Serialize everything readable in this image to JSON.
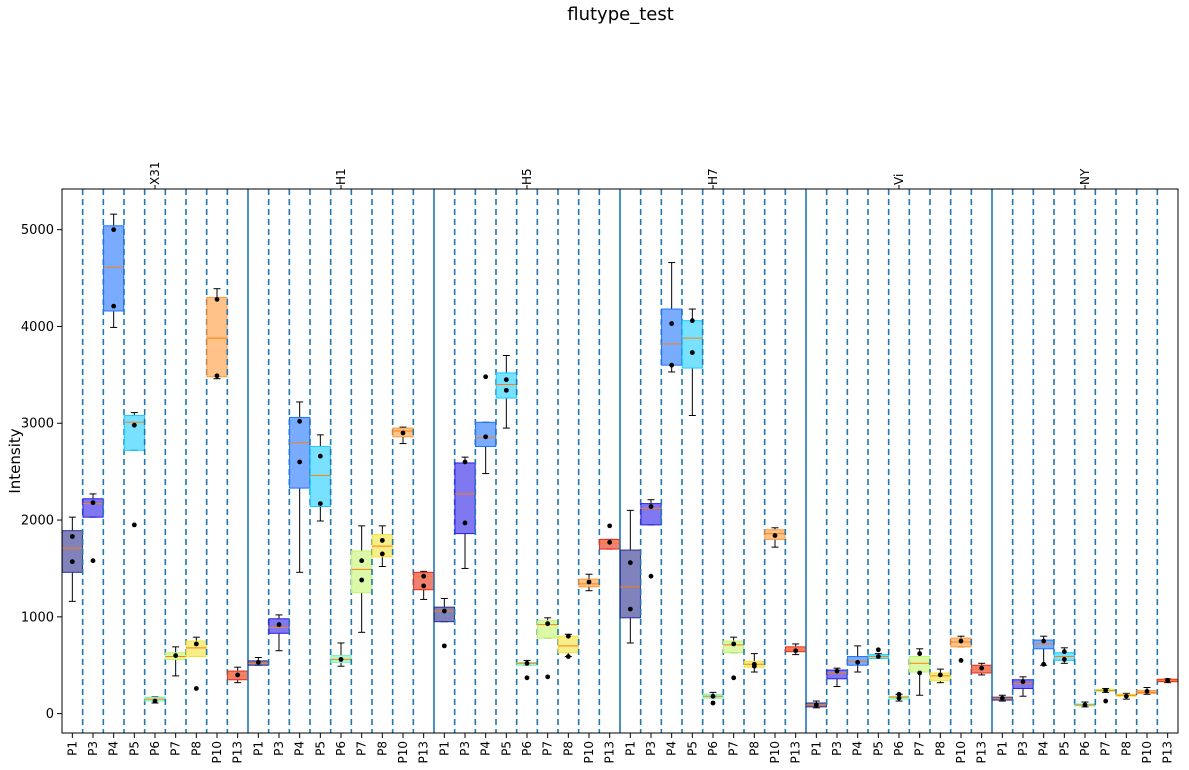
{
  "chart_data": {
    "type": "box",
    "title": "flutype_test",
    "xlabel": "",
    "ylabel": "Intensity",
    "ylim": [
      -200,
      5420
    ],
    "yticks": [
      0,
      1000,
      2000,
      3000,
      4000,
      5000
    ],
    "categories": [
      "P1",
      "P3",
      "P4",
      "P5",
      "P6",
      "P7",
      "P8",
      "P10",
      "P13"
    ],
    "colors": [
      "#2b2f8f",
      "#2a1ee6",
      "#1f73ff",
      "#1ccdff",
      "#7ef2b5",
      "#c3f56c",
      "#f2e33a",
      "#ff9a3a",
      "#ea2b14"
    ],
    "groups": [
      {
        "name": "X31",
        "boxes": [
          {
            "q1": 1460,
            "median": 1710,
            "q3": 1890,
            "lo": 1160,
            "hi": 2030,
            "pts": [
              1830,
              1570
            ]
          },
          {
            "q1": 2030,
            "median": 2170,
            "q3": 2220,
            "lo": 2030,
            "hi": 2270,
            "pts": [
              2180,
              1580
            ]
          },
          {
            "q1": 4160,
            "median": 4610,
            "q3": 5040,
            "lo": 3990,
            "hi": 5160,
            "pts": [
              5000,
              4210
            ]
          },
          {
            "q1": 2720,
            "median": 3010,
            "q3": 3080,
            "lo": 2720,
            "hi": 3110,
            "pts": [
              2980,
              1950
            ]
          },
          {
            "q1": 130,
            "median": 150,
            "q3": 170,
            "lo": 110,
            "hi": 175,
            "pts": [
              130
            ]
          },
          {
            "q1": 560,
            "median": 590,
            "q3": 630,
            "lo": 390,
            "hi": 690,
            "pts": [
              600
            ]
          },
          {
            "q1": 590,
            "median": 680,
            "q3": 750,
            "lo": 590,
            "hi": 790,
            "pts": [
              720,
              260
            ]
          },
          {
            "q1": 3480,
            "median": 3880,
            "q3": 4300,
            "lo": 3460,
            "hi": 4390,
            "pts": [
              4280,
              3490
            ]
          },
          {
            "q1": 350,
            "median": 390,
            "q3": 440,
            "lo": 320,
            "hi": 480,
            "pts": [
              400
            ]
          }
        ]
      },
      {
        "name": "H1",
        "boxes": [
          {
            "q1": 500,
            "median": 520,
            "q3": 545,
            "lo": 500,
            "hi": 580,
            "pts": [
              530
            ]
          },
          {
            "q1": 830,
            "median": 890,
            "q3": 980,
            "lo": 650,
            "hi": 1020,
            "pts": [
              920
            ]
          },
          {
            "q1": 2330,
            "median": 2800,
            "q3": 3060,
            "lo": 1460,
            "hi": 3220,
            "pts": [
              3020,
              2600
            ]
          },
          {
            "q1": 2140,
            "median": 2460,
            "q3": 2760,
            "lo": 1990,
            "hi": 2880,
            "pts": [
              2660,
              2170
            ]
          },
          {
            "q1": 530,
            "median": 560,
            "q3": 600,
            "lo": 490,
            "hi": 730,
            "pts": [
              560
            ]
          },
          {
            "q1": 1250,
            "median": 1490,
            "q3": 1680,
            "lo": 840,
            "hi": 1940,
            "pts": [
              1580,
              1380
            ]
          },
          {
            "q1": 1620,
            "median": 1730,
            "q3": 1850,
            "lo": 1520,
            "hi": 1940,
            "pts": [
              1790,
              1650
            ]
          },
          {
            "q1": 2860,
            "median": 2920,
            "q3": 2950,
            "lo": 2790,
            "hi": 2960,
            "pts": [
              2900
            ]
          },
          {
            "q1": 1280,
            "median": 1420,
            "q3": 1460,
            "lo": 1180,
            "hi": 1470,
            "pts": [
              1420,
              1320
            ]
          }
        ]
      },
      {
        "name": "H5",
        "boxes": [
          {
            "q1": 950,
            "median": 1060,
            "q3": 1100,
            "lo": 950,
            "hi": 1190,
            "pts": [
              1060,
              700
            ]
          },
          {
            "q1": 1860,
            "median": 2270,
            "q3": 2590,
            "lo": 1500,
            "hi": 2650,
            "pts": [
              2600,
              1970
            ]
          },
          {
            "q1": 2760,
            "median": 2850,
            "q3": 3010,
            "lo": 2480,
            "hi": 3010,
            "pts": [
              2860,
              3480
            ]
          },
          {
            "q1": 3260,
            "median": 3400,
            "q3": 3520,
            "lo": 2950,
            "hi": 3700,
            "pts": [
              3450,
              3340
            ]
          },
          {
            "q1": 500,
            "median": 520,
            "q3": 530,
            "lo": 500,
            "hi": 550,
            "pts": [
              520,
              370
            ]
          },
          {
            "q1": 780,
            "median": 920,
            "q3": 960,
            "lo": 780,
            "hi": 990,
            "pts": [
              930,
              380
            ]
          },
          {
            "q1": 630,
            "median": 700,
            "q3": 800,
            "lo": 590,
            "hi": 820,
            "pts": [
              800,
              590
            ]
          },
          {
            "q1": 1310,
            "median": 1340,
            "q3": 1390,
            "lo": 1270,
            "hi": 1440,
            "pts": [
              1360
            ]
          },
          {
            "q1": 1700,
            "median": 1760,
            "q3": 1800,
            "lo": 1700,
            "hi": 1800,
            "pts": [
              1770,
              1940
            ]
          }
        ]
      },
      {
        "name": "H7",
        "boxes": [
          {
            "q1": 990,
            "median": 1310,
            "q3": 1690,
            "lo": 730,
            "hi": 2100,
            "pts": [
              1560,
              1080
            ]
          },
          {
            "q1": 1950,
            "median": 2120,
            "q3": 2170,
            "lo": 1950,
            "hi": 2210,
            "pts": [
              2140,
              1420
            ]
          },
          {
            "q1": 3600,
            "median": 3820,
            "q3": 4180,
            "lo": 3530,
            "hi": 4660,
            "pts": [
              4030,
              3600
            ]
          },
          {
            "q1": 3570,
            "median": 3880,
            "q3": 4060,
            "lo": 3080,
            "hi": 4180,
            "pts": [
              4060,
              3730
            ]
          },
          {
            "q1": 160,
            "median": 180,
            "q3": 200,
            "lo": 160,
            "hi": 220,
            "pts": [
              180,
              110
            ]
          },
          {
            "q1": 630,
            "median": 710,
            "q3": 750,
            "lo": 630,
            "hi": 790,
            "pts": [
              720,
              370
            ]
          },
          {
            "q1": 480,
            "median": 510,
            "q3": 540,
            "lo": 430,
            "hi": 620,
            "pts": [
              510,
              490
            ]
          },
          {
            "q1": 1800,
            "median": 1860,
            "q3": 1900,
            "lo": 1720,
            "hi": 1920,
            "pts": [
              1840
            ]
          },
          {
            "q1": 640,
            "median": 660,
            "q3": 690,
            "lo": 610,
            "hi": 720,
            "pts": [
              650
            ]
          }
        ]
      },
      {
        "name": "Vi",
        "boxes": [
          {
            "q1": 70,
            "median": 90,
            "q3": 110,
            "lo": 60,
            "hi": 130,
            "pts": [
              90
            ]
          },
          {
            "q1": 360,
            "median": 420,
            "q3": 450,
            "lo": 280,
            "hi": 470,
            "pts": [
              440
            ]
          },
          {
            "q1": 500,
            "median": 540,
            "q3": 590,
            "lo": 430,
            "hi": 700,
            "pts": [
              530
            ]
          },
          {
            "q1": 570,
            "median": 590,
            "q3": 610,
            "lo": 570,
            "hi": 620,
            "pts": [
              590,
              660
            ]
          },
          {
            "q1": 150,
            "median": 170,
            "q3": 180,
            "lo": 130,
            "hi": 200,
            "pts": [
              160,
              200
            ]
          },
          {
            "q1": 430,
            "median": 520,
            "q3": 590,
            "lo": 190,
            "hi": 670,
            "pts": [
              620,
              420
            ]
          },
          {
            "q1": 340,
            "median": 390,
            "q3": 420,
            "lo": 320,
            "hi": 460,
            "pts": [
              400
            ]
          },
          {
            "q1": 690,
            "median": 740,
            "q3": 780,
            "lo": 690,
            "hi": 800,
            "pts": [
              750,
              550
            ]
          },
          {
            "q1": 420,
            "median": 460,
            "q3": 500,
            "lo": 400,
            "hi": 520,
            "pts": [
              470
            ]
          }
        ]
      },
      {
        "name": "NY",
        "boxes": [
          {
            "q1": 140,
            "median": 160,
            "q3": 170,
            "lo": 130,
            "hi": 190,
            "pts": [
              160
            ]
          },
          {
            "q1": 260,
            "median": 310,
            "q3": 350,
            "lo": 180,
            "hi": 380,
            "pts": [
              330
            ]
          },
          {
            "q1": 670,
            "median": 720,
            "q3": 760,
            "lo": 500,
            "hi": 800,
            "pts": [
              750,
              510
            ]
          },
          {
            "q1": 550,
            "median": 590,
            "q3": 630,
            "lo": 520,
            "hi": 680,
            "pts": [
              640,
              560
            ]
          },
          {
            "q1": 80,
            "median": 90,
            "q3": 100,
            "lo": 70,
            "hi": 120,
            "pts": [
              90
            ]
          },
          {
            "q1": 230,
            "median": 240,
            "q3": 250,
            "lo": 220,
            "hi": 260,
            "pts": [
              240,
              130
            ]
          },
          {
            "q1": 180,
            "median": 190,
            "q3": 200,
            "lo": 150,
            "hi": 210,
            "pts": [
              180
            ]
          },
          {
            "q1": 210,
            "median": 220,
            "q3": 240,
            "lo": 200,
            "hi": 270,
            "pts": [
              230
            ]
          },
          {
            "q1": 330,
            "median": 345,
            "q3": 355,
            "lo": 320,
            "hi": 360,
            "pts": [
              345
            ]
          }
        ]
      }
    ]
  }
}
